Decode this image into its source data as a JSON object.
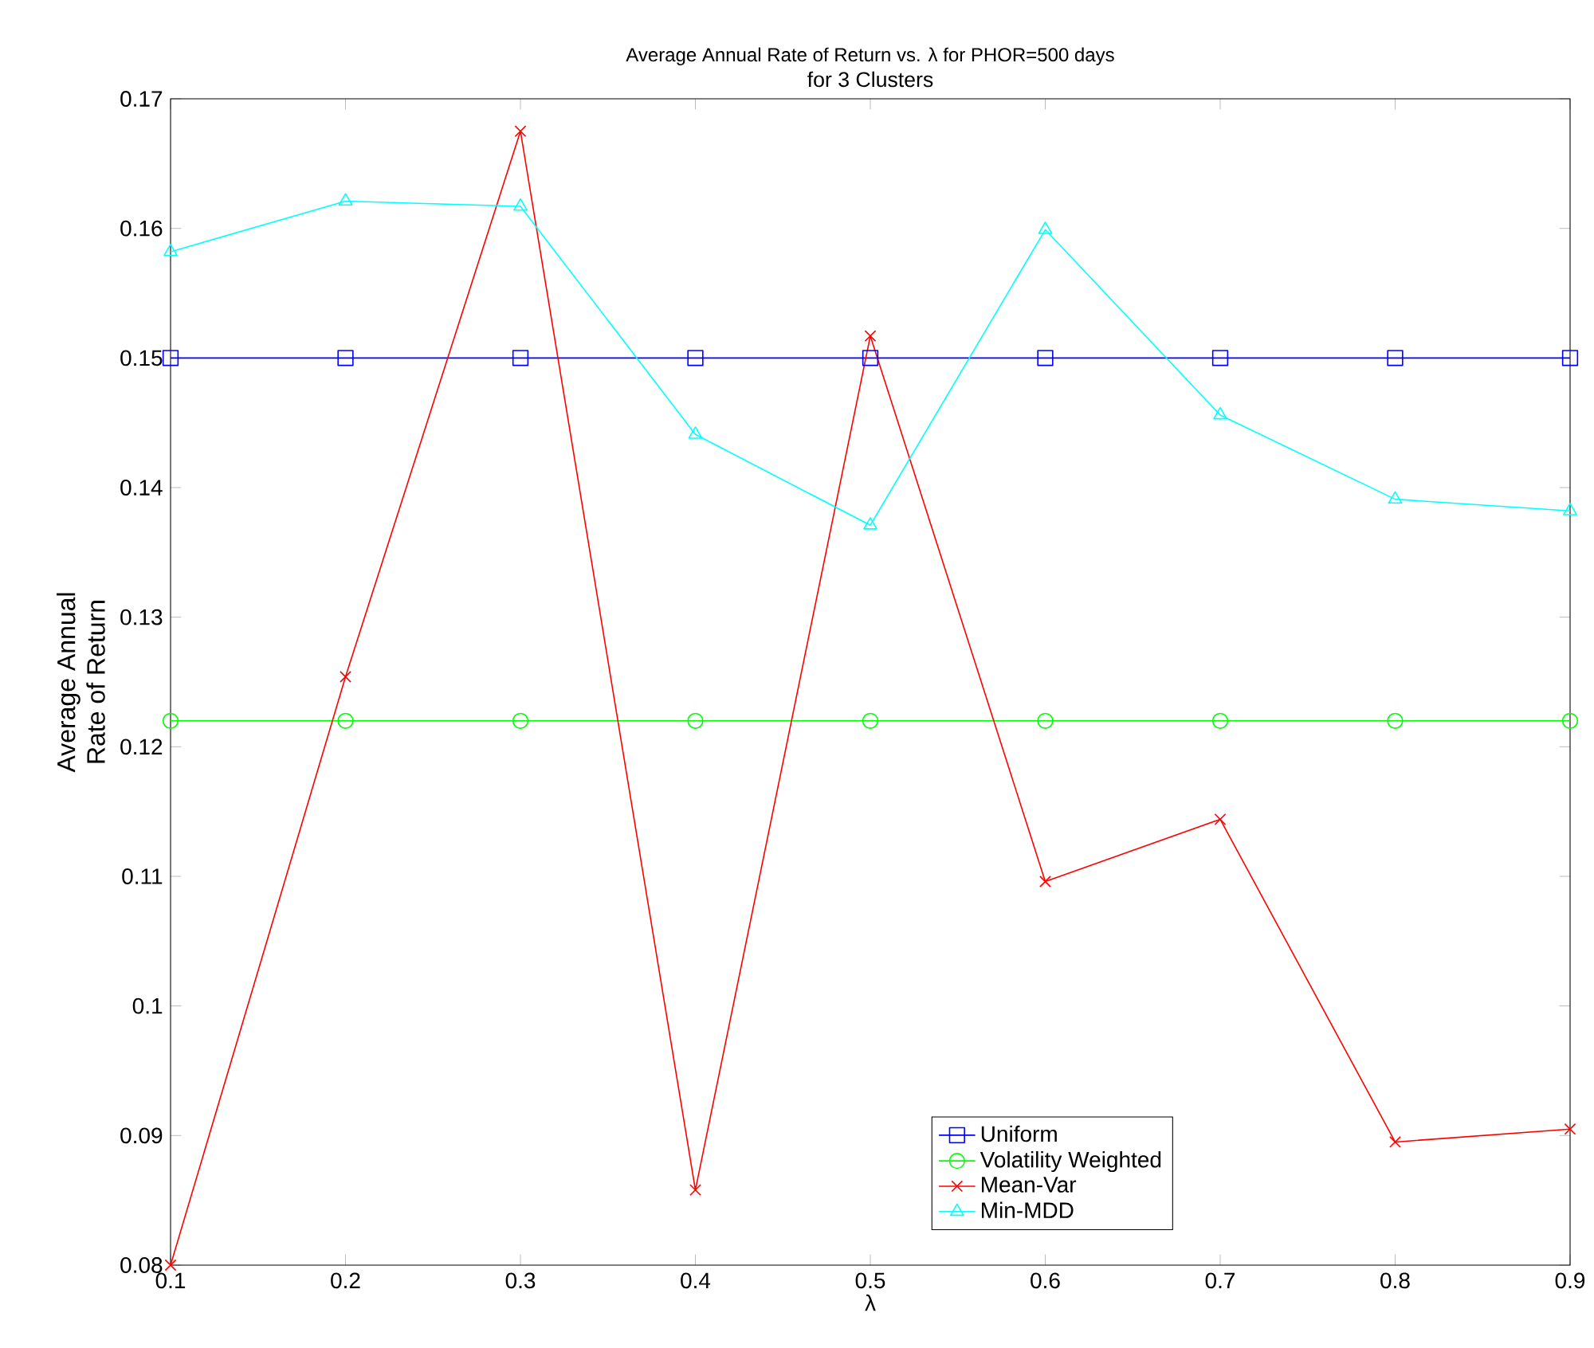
{
  "chart_data": {
    "type": "line",
    "title": "Average Annual Rate of Return vs. λ for PHOR=500 days",
    "subtitle": "for 3 Clusters",
    "xlabel": "λ",
    "ylabel": "Average Annual Rate of Return",
    "x": [
      0.1,
      0.2,
      0.3,
      0.4,
      0.5,
      0.6,
      0.7,
      0.8,
      0.9
    ],
    "series": [
      {
        "name": "Uniform",
        "color": "#0000ff",
        "marker": "square",
        "values": [
          0.15,
          0.15,
          0.15,
          0.15,
          0.15,
          0.15,
          0.15,
          0.15,
          0.15
        ]
      },
      {
        "name": "Volatility Weighted",
        "color": "#00ff00",
        "marker": "circle",
        "values": [
          0.122,
          0.122,
          0.122,
          0.122,
          0.122,
          0.122,
          0.122,
          0.122,
          0.122
        ]
      },
      {
        "name": "Mean-Var",
        "color": "#ff0000",
        "marker": "cross",
        "values": [
          0.08,
          0.1254,
          0.1675,
          0.0858,
          0.1517,
          0.1096,
          0.1144,
          0.0895,
          0.0905
        ]
      },
      {
        "name": "Min-MDD",
        "color": "#00ffff",
        "marker": "triangle",
        "values": [
          0.1582,
          0.1621,
          0.1617,
          0.1441,
          0.1371,
          0.1599,
          0.1456,
          0.1391,
          0.1382
        ]
      }
    ],
    "xlim": [
      0.1,
      0.9
    ],
    "ylim": [
      0.08,
      0.17
    ],
    "xticks": [
      0.1,
      0.2,
      0.3,
      0.4,
      0.5,
      0.6,
      0.7,
      0.8,
      0.9
    ],
    "yticks": [
      0.08,
      0.09,
      0.1,
      0.11,
      0.12,
      0.13,
      0.14,
      0.15,
      0.16,
      0.17
    ],
    "grid": false,
    "legend": "bottom",
    "line_style": "solid"
  }
}
